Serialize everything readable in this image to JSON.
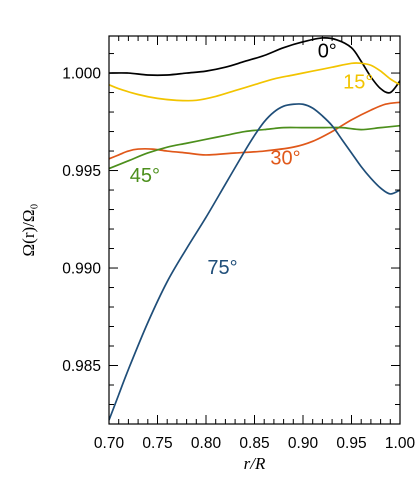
{
  "chart_data": {
    "type": "line",
    "title": "",
    "xlabel": "r/R",
    "ylabel": "Ω(r)/Ω₀",
    "xlim": [
      0.7,
      1.0
    ],
    "ylim": [
      0.982,
      1.0019
    ],
    "xticks": [
      "0.70",
      "0.75",
      "0.80",
      "0.85",
      "0.90",
      "0.95",
      "1.00"
    ],
    "xtick_values": [
      0.7,
      0.75,
      0.8,
      0.85,
      0.9,
      0.95,
      1.0
    ],
    "yticks": [
      "0.985",
      "0.990",
      "0.995",
      "1.000"
    ],
    "ytick_values": [
      0.985,
      0.99,
      0.995,
      1.0
    ],
    "grid": false,
    "series": [
      {
        "name": "0°",
        "color": "#000000",
        "label_at": [
          0.925,
          1.0008
        ],
        "x": [
          0.7,
          0.72,
          0.74,
          0.76,
          0.78,
          0.8,
          0.82,
          0.84,
          0.86,
          0.88,
          0.9,
          0.92,
          0.935,
          0.95,
          0.96,
          0.97,
          0.98,
          0.99,
          1.0
        ],
        "y": [
          1.0,
          1.0,
          0.9999,
          0.9999,
          1.0,
          1.0001,
          1.0003,
          1.0006,
          1.0009,
          1.0013,
          1.0016,
          1.0018,
          1.0017,
          1.0013,
          1.0006,
          0.9998,
          0.9992,
          0.999,
          0.9996
        ]
      },
      {
        "name": "15°",
        "color": "#f2c400",
        "label_at": [
          0.957,
          0.9992
        ],
        "x": [
          0.7,
          0.71,
          0.73,
          0.75,
          0.77,
          0.79,
          0.81,
          0.83,
          0.85,
          0.87,
          0.89,
          0.91,
          0.93,
          0.95,
          0.96,
          0.97,
          0.98,
          0.99,
          1.0
        ],
        "y": [
          0.9994,
          0.9992,
          0.9989,
          0.9987,
          0.9986,
          0.9986,
          0.9988,
          0.9991,
          0.9994,
          0.9997,
          0.9999,
          1.0001,
          1.0003,
          1.0005,
          1.0005,
          1.0004,
          1.0001,
          0.9997,
          0.9994
        ]
      },
      {
        "name": "30°",
        "color": "#e0581a",
        "label_at": [
          0.882,
          0.9953
        ],
        "x": [
          0.7,
          0.71,
          0.72,
          0.73,
          0.745,
          0.76,
          0.78,
          0.8,
          0.83,
          0.86,
          0.89,
          0.91,
          0.93,
          0.95,
          0.97,
          0.985,
          1.0
        ],
        "y": [
          0.9956,
          0.9958,
          0.996,
          0.9961,
          0.9961,
          0.996,
          0.9959,
          0.9958,
          0.9959,
          0.996,
          0.9962,
          0.9965,
          0.997,
          0.9976,
          0.9981,
          0.9984,
          0.9985
        ]
      },
      {
        "name": "45°",
        "color": "#4c8f1c",
        "label_at": [
          0.737,
          0.9944
        ],
        "x": [
          0.7,
          0.72,
          0.74,
          0.76,
          0.78,
          0.8,
          0.82,
          0.84,
          0.86,
          0.88,
          0.9,
          0.92,
          0.94,
          0.96,
          0.98,
          1.0
        ],
        "y": [
          0.9951,
          0.9955,
          0.9959,
          0.9962,
          0.9964,
          0.9966,
          0.9968,
          0.997,
          0.9971,
          0.9972,
          0.9972,
          0.9972,
          0.9972,
          0.9971,
          0.9972,
          0.9973
        ]
      },
      {
        "name": "75°",
        "color": "#1f4e79",
        "label_at": [
          0.817,
          0.9897
        ],
        "x": [
          0.7,
          0.71,
          0.72,
          0.74,
          0.76,
          0.78,
          0.8,
          0.82,
          0.84,
          0.85,
          0.86,
          0.87,
          0.88,
          0.89,
          0.9,
          0.91,
          0.92,
          0.93,
          0.94,
          0.95,
          0.96,
          0.97,
          0.98,
          0.99,
          1.0
        ],
        "y": [
          0.9822,
          0.9835,
          0.9848,
          0.9872,
          0.9893,
          0.991,
          0.9926,
          0.9943,
          0.996,
          0.9968,
          0.9975,
          0.998,
          0.9983,
          0.9984,
          0.9984,
          0.9982,
          0.9978,
          0.9973,
          0.9966,
          0.9959,
          0.9952,
          0.9946,
          0.9941,
          0.9938,
          0.994
        ]
      }
    ]
  }
}
